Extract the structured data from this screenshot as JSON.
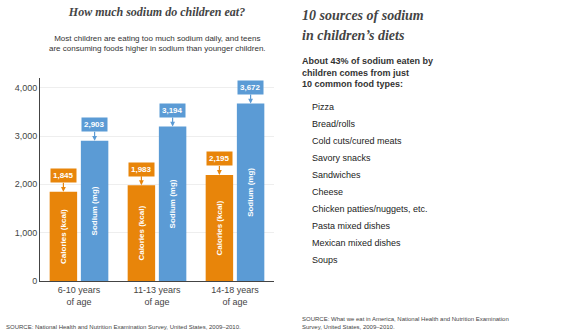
{
  "chart_data": {
    "type": "bar",
    "title": "How much sodium do children eat?",
    "subtitle": "Most children are eating too much sodium daily, and teens\nare consuming foods higher in sodium than younger children.",
    "categories": [
      "6-10 years\nof age",
      "11-13 years\nof age",
      "14-18 years\nof age"
    ],
    "series": [
      {
        "name": "Calories (kcal)",
        "color": "#e8850a",
        "values": [
          1845,
          1983,
          2195
        ],
        "value_labels": [
          "1,845",
          "1,983",
          "2,195"
        ]
      },
      {
        "name": "Sodium (mg)",
        "color": "#5b9bd5",
        "values": [
          2903,
          3194,
          3672
        ],
        "value_labels": [
          "2,903",
          "3,194",
          "3,672"
        ]
      }
    ],
    "ylim": [
      0,
      4200
    ],
    "yticks": [
      0,
      {
        "value": 1000,
        "label": "1,000"
      },
      {
        "value": 2000,
        "label": "2,000"
      },
      {
        "value": 3000,
        "label": "3,000"
      },
      {
        "value": 4000,
        "label": "4,000"
      }
    ],
    "grid": true,
    "data_labels": true,
    "annotations": [
      "10 sources of sodium",
      "in children’s diets",
      "About 43% of sodium eaten by\nchildren comes from just\n10 common food types:",
      "Pizza",
      "Bread/rolls",
      "Cold cuts/cured meats",
      "Savory snacks",
      "Sandwiches",
      "Cheese",
      "Chicken patties/nuggets, etc.",
      "Pasta mixed dishes",
      "Mexican mixed dishes",
      "Soups",
      "SOURCE: National Health and Nutrition Examination Survey, United States, 2009–2010.",
      "SOURCE: What we eat in America, National Health and Nutrition Examination\nSurvey, United States, 2009–2010."
    ]
  }
}
